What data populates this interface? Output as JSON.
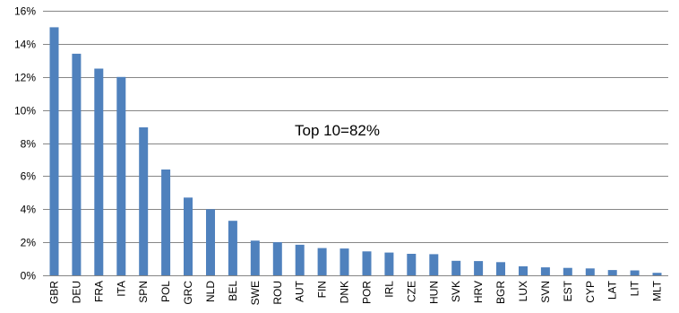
{
  "chart_data": {
    "type": "bar",
    "categories": [
      "GBR",
      "DEU",
      "FRA",
      "ITA",
      "SPN",
      "POL",
      "GRC",
      "NLD",
      "BEL",
      "SWE",
      "ROU",
      "AUT",
      "FIN",
      "DNK",
      "POR",
      "IRL",
      "CZE",
      "HUN",
      "SVK",
      "HRV",
      "BGR",
      "LUX",
      "SVN",
      "EST",
      "CYP",
      "LAT",
      "LIT",
      "MLT"
    ],
    "values": [
      15.0,
      13.4,
      12.5,
      12.0,
      8.95,
      6.4,
      4.7,
      4.0,
      3.3,
      2.1,
      2.0,
      1.85,
      1.65,
      1.62,
      1.45,
      1.38,
      1.3,
      1.28,
      0.88,
      0.86,
      0.8,
      0.55,
      0.48,
      0.45,
      0.42,
      0.32,
      0.3,
      0.15
    ],
    "ylim": [
      0,
      16
    ],
    "yticks": [
      0,
      2,
      4,
      6,
      8,
      10,
      12,
      14,
      16
    ],
    "ytick_labels": [
      "0%",
      "2%",
      "4%",
      "6%",
      "8%",
      "10%",
      "12%",
      "14%",
      "16%"
    ],
    "grid": "horizontal",
    "bar_color": "#4F81BD",
    "grid_color": "#868686",
    "annotation": "Top 10=82%",
    "title": "",
    "xlabel": "",
    "ylabel": ""
  }
}
